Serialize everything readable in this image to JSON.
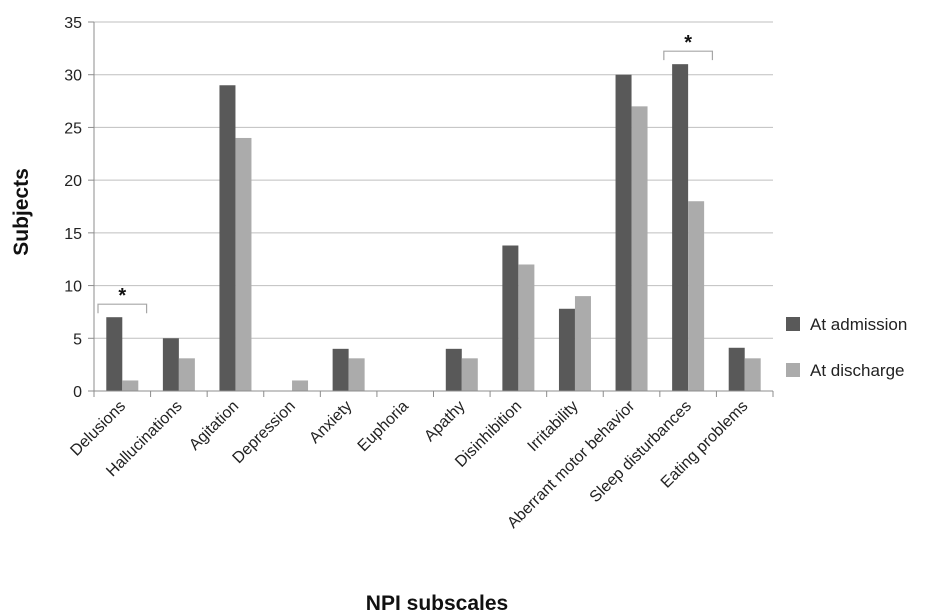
{
  "chart_data": {
    "type": "bar",
    "title": "",
    "xlabel": "NPI subscales",
    "ylabel": "Subjects",
    "ylim": [
      0,
      35
    ],
    "yticks": [
      0,
      5,
      10,
      15,
      20,
      25,
      30,
      35
    ],
    "grid": true,
    "legend_position": "right",
    "categories": [
      "Delusions",
      "Hallucinations",
      "Agitation",
      "Depression",
      "Anxiety",
      "Euphoria",
      "Apathy",
      "Disinhibition",
      "Irritability",
      "Aberrant motor behavior",
      "Sleep disturbances",
      "Eating problems"
    ],
    "series": [
      {
        "name": "At admission",
        "color": "#595959",
        "values": [
          7,
          5,
          29,
          0,
          4,
          0,
          4,
          13.8,
          7.8,
          30,
          31,
          4.1
        ]
      },
      {
        "name": "At discharge",
        "color": "#ababab",
        "values": [
          1,
          3.1,
          24,
          1,
          3.1,
          0,
          3.1,
          12,
          9,
          27,
          18,
          3.1
        ]
      }
    ],
    "annotations": [
      {
        "text": "*",
        "category": "Delusions"
      },
      {
        "text": "*",
        "category": "Sleep disturbances"
      }
    ]
  }
}
